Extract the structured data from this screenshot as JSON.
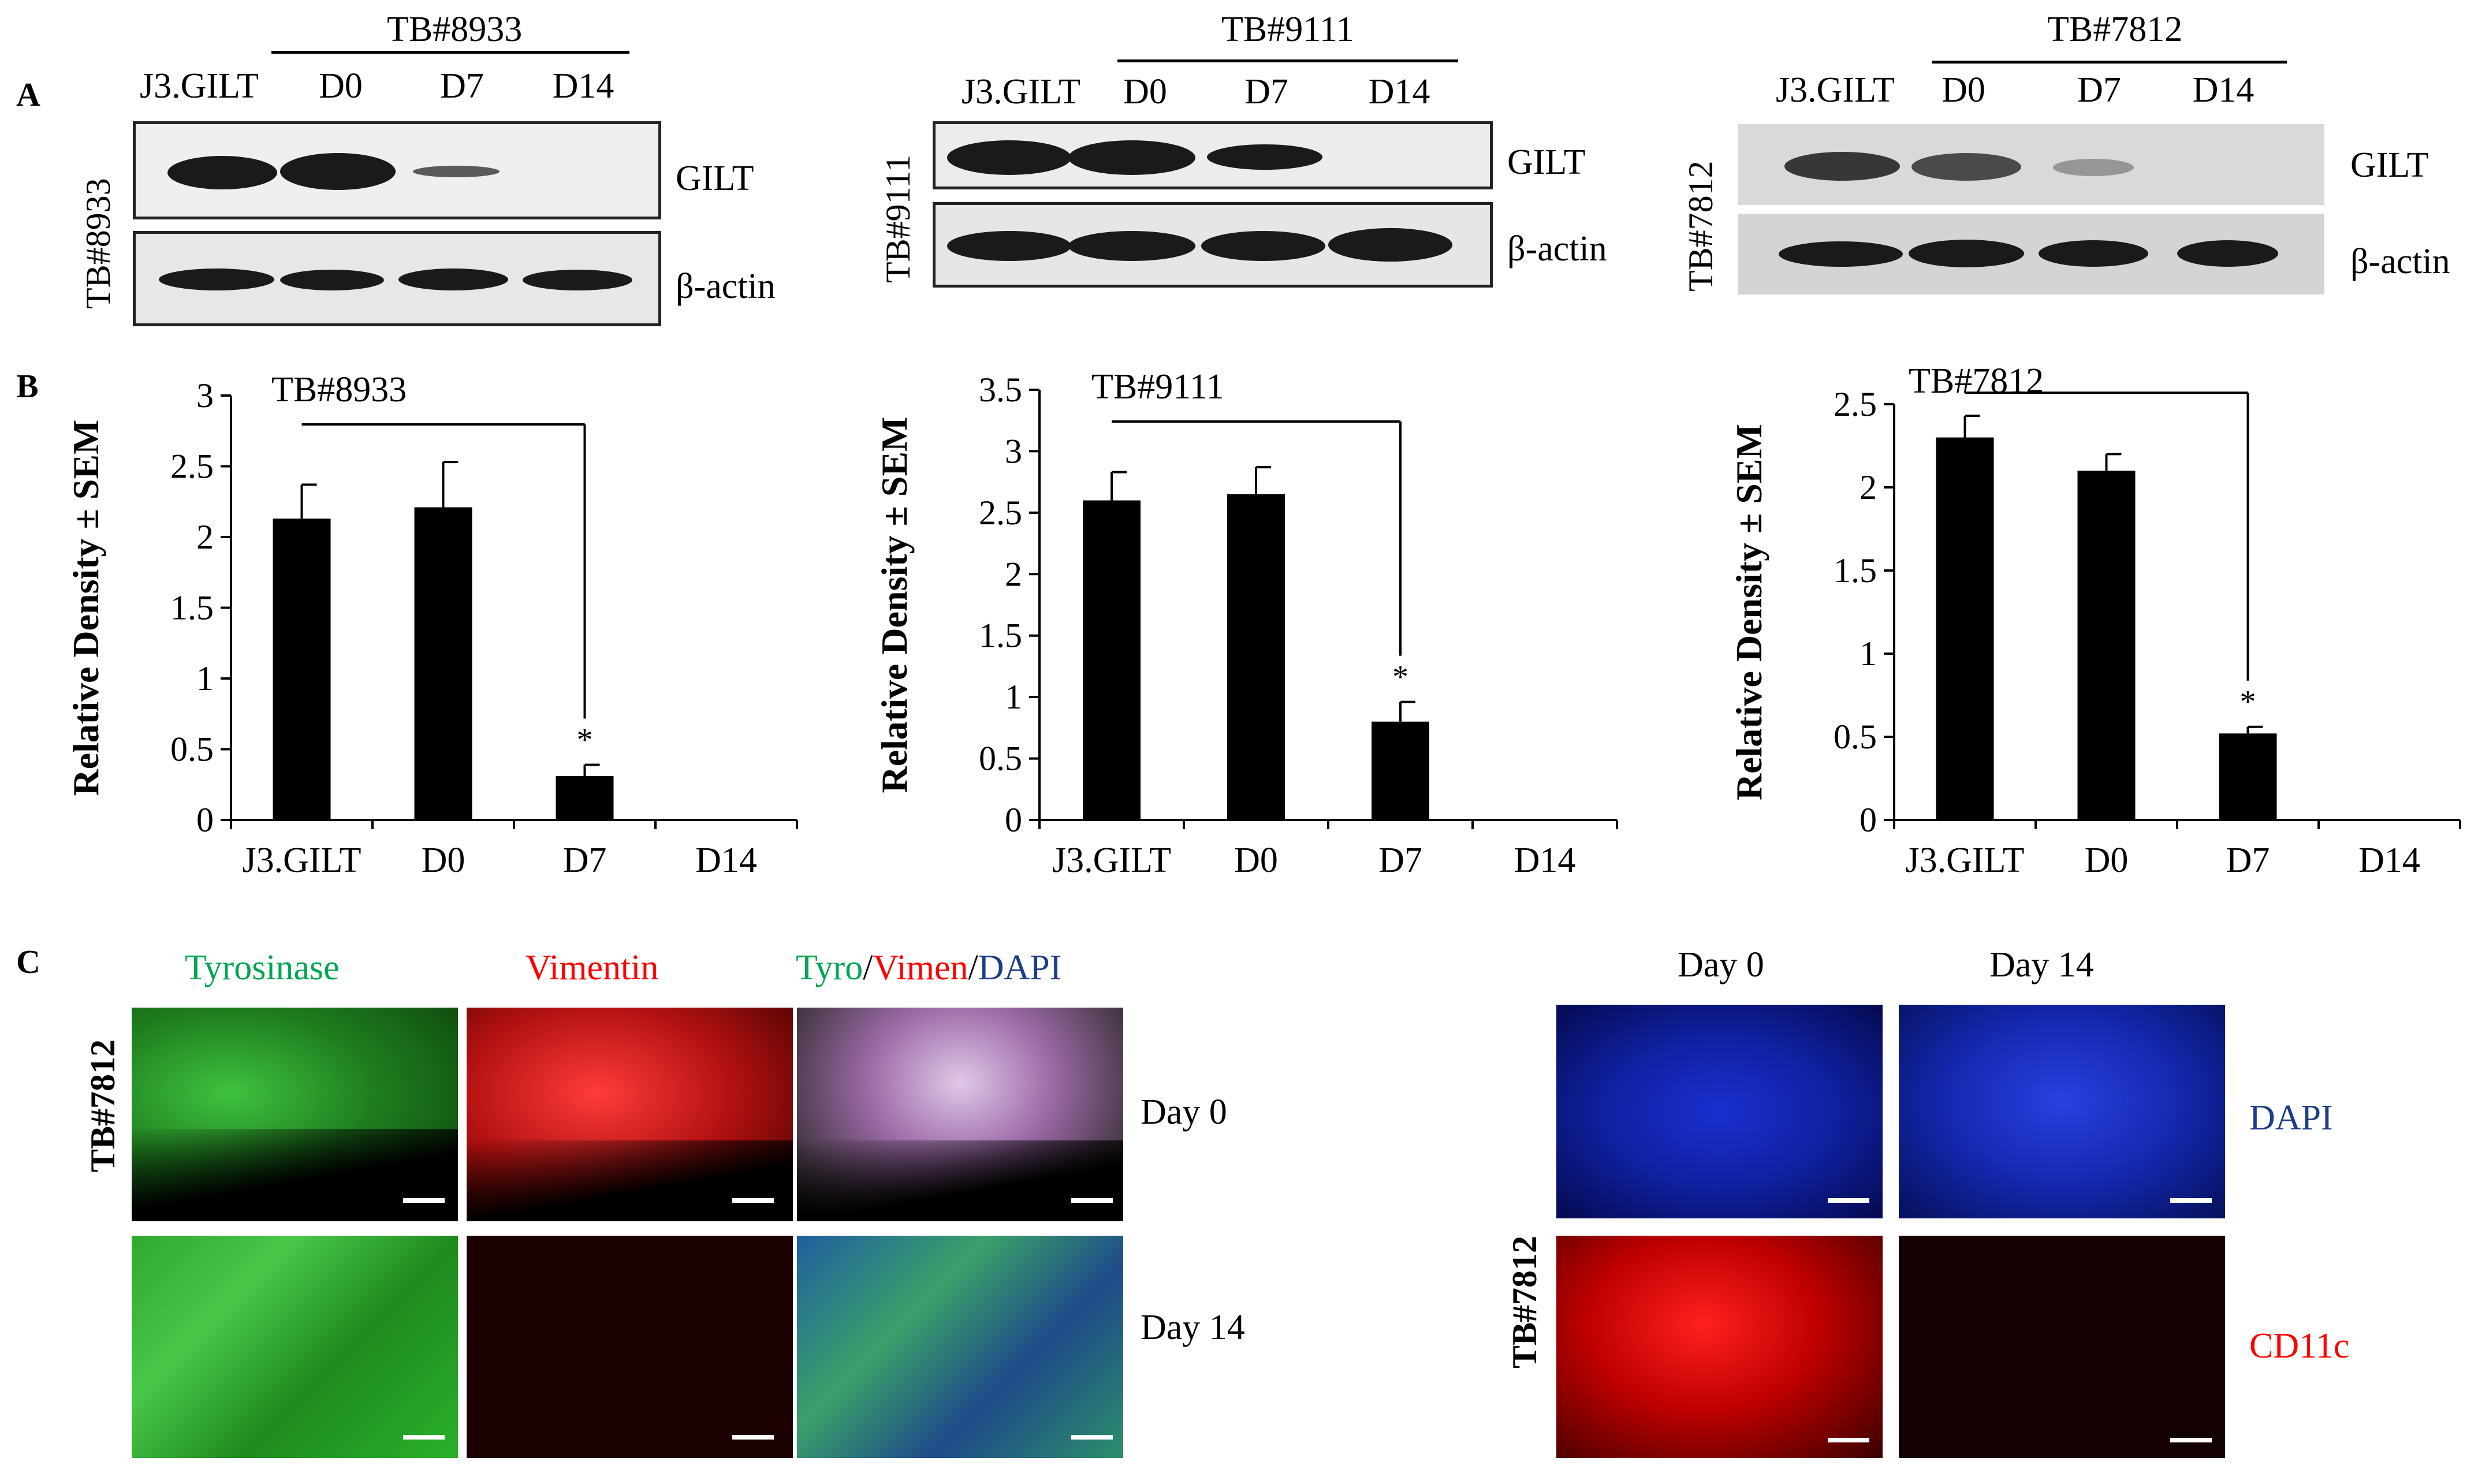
{
  "panel_letters": {
    "a": "A",
    "b": "B",
    "c": "C"
  },
  "blot_panels": [
    {
      "sample": "TB#8933",
      "lanes": [
        "J3.GILT",
        "D0",
        "D7",
        "D14"
      ],
      "proteins": [
        "GILT",
        "β-actin"
      ]
    },
    {
      "sample": "TB#9111",
      "lanes": [
        "J3.GILT",
        "D0",
        "D7",
        "D14"
      ],
      "proteins": [
        "GILT",
        "β-actin"
      ]
    },
    {
      "sample": "TB#7812",
      "lanes": [
        "J3.GILT",
        "D0",
        "D7",
        "D14"
      ],
      "proteins": [
        "GILT",
        "β-actin"
      ]
    }
  ],
  "chart_data": [
    {
      "type": "bar",
      "title": "TB#8933",
      "categories": [
        "J3.GILT",
        "D0",
        "D7",
        "D14"
      ],
      "values": [
        2.13,
        2.21,
        0.31,
        0
      ],
      "errors": [
        0.24,
        0.32,
        0.08,
        0
      ],
      "ylabel": "Relative Density ± SEM",
      "ylim": [
        0,
        3
      ],
      "yticks": [
        "0",
        "0.5",
        "1",
        "1.5",
        "2",
        "2.5",
        "3"
      ],
      "significance": {
        "from": "J3.GILT",
        "to": "D7",
        "marker": "*"
      }
    },
    {
      "type": "bar",
      "title": "TB#9111",
      "categories": [
        "J3.GILT",
        "D0",
        "D7",
        "D14"
      ],
      "values": [
        2.6,
        2.65,
        0.8,
        0
      ],
      "errors": [
        0.23,
        0.22,
        0.16,
        0
      ],
      "ylabel": "Relative Density ± SEM",
      "ylim": [
        0,
        3.5
      ],
      "yticks": [
        "0",
        "0.5",
        "1",
        "1.5",
        "2",
        "2.5",
        "3",
        "3.5"
      ],
      "significance": {
        "from": "J3.GILT",
        "to": "D7",
        "marker": "*"
      }
    },
    {
      "type": "bar",
      "title": "TB#7812",
      "categories": [
        "J3.GILT",
        "D0",
        "D7",
        "D14"
      ],
      "values": [
        2.3,
        2.1,
        0.52,
        0
      ],
      "errors": [
        0.13,
        0.1,
        0.04,
        0
      ],
      "ylabel": "Relative Density ± SEM",
      "ylim": [
        0,
        2.5
      ],
      "yticks": [
        "0",
        "0.5",
        "1",
        "1.5",
        "2",
        "2.5"
      ],
      "significance": {
        "from": "J3.GILT",
        "to": "D7",
        "marker": "*"
      }
    }
  ],
  "panel_c": {
    "left": {
      "sample": "TB#7812",
      "columns": [
        "Tyrosinase",
        "Vimentin",
        "Tyro",
        "/",
        "Vimen",
        "/",
        "DAPI"
      ],
      "rows": [
        "Day 0",
        "Day 14"
      ]
    },
    "right": {
      "sample": "TB#7812",
      "columns": [
        "Day 0",
        "Day 14"
      ],
      "rows": [
        "DAPI",
        "CD11c"
      ]
    }
  },
  "colors": {
    "tyrosinase": "#00a651",
    "vimentin": "#ff0000",
    "dapi": "#1f3c88",
    "cd11c": "#ff0000"
  }
}
